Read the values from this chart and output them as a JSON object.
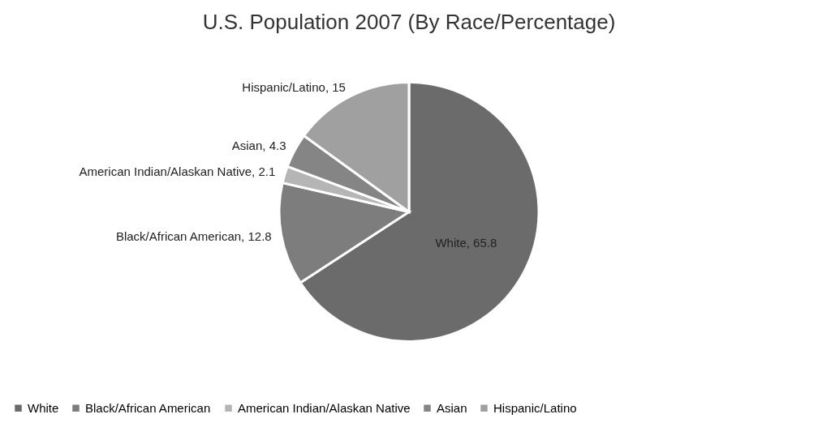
{
  "chart_data": {
    "type": "pie",
    "title": "U.S. Population 2007 (By Race/Percentage)",
    "categories": [
      "White",
      "Black/African American",
      "American Indian/Alaskan Native",
      "Asian",
      "Hispanic/Latino"
    ],
    "values": [
      65.8,
      12.8,
      2.1,
      4.3,
      15
    ],
    "colors": [
      "#6b6b6b",
      "#7d7d7d",
      "#b5b5b5",
      "#858585",
      "#a0a0a0"
    ],
    "value_labels": [
      "White, 65.8",
      "Black/African American, 12.8",
      "American Indian/Alaskan Native, 2.1",
      "Asian, 4.3",
      "Hispanic/Latino, 15"
    ],
    "legend": "bottom"
  }
}
